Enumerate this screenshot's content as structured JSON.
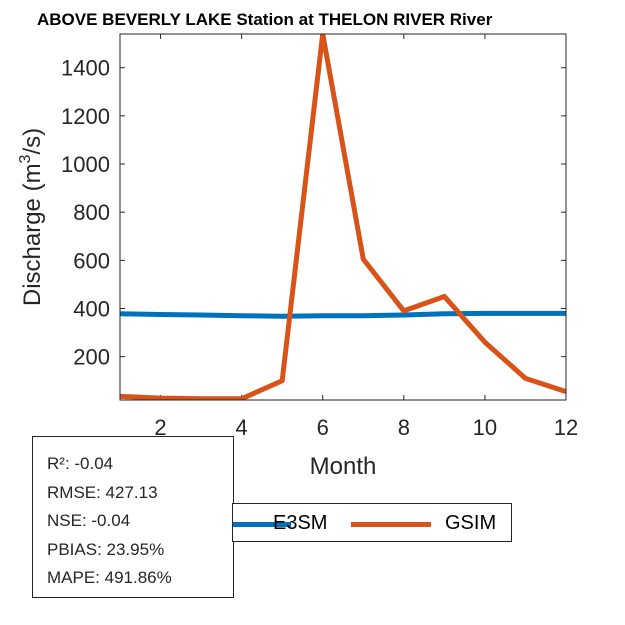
{
  "chart_data": {
    "type": "line",
    "title": "ABOVE BEVERLY LAKE  Station at  THELON RIVER  River",
    "xlabel": "Month",
    "ylabel": "Discharge (m³/s)",
    "ylabel_parts": {
      "main": "Discharge (m",
      "sup": "3",
      "end": "/s)"
    },
    "xlim": [
      1,
      12
    ],
    "ylim": [
      20,
      1540
    ],
    "xticks": [
      2,
      4,
      6,
      8,
      10,
      12
    ],
    "yticks": [
      200,
      400,
      600,
      800,
      1000,
      1200,
      1400
    ],
    "x": [
      1,
      2,
      3,
      4,
      5,
      6,
      7,
      8,
      9,
      10,
      11,
      12
    ],
    "series": [
      {
        "name": "E3SM",
        "color": "#0072BD",
        "values": [
          378,
          375,
          373,
          370,
          368,
          370,
          370,
          373,
          378,
          380,
          380,
          380
        ]
      },
      {
        "name": "GSIM",
        "color": "#D95319",
        "values": [
          35,
          28,
          25,
          25,
          100,
          1540,
          605,
          390,
          450,
          260,
          110,
          55
        ]
      }
    ]
  },
  "stats": {
    "r2": "R²: -0.04",
    "rmse": "RMSE: 427.13",
    "nse": "NSE: -0.04",
    "pbias": "PBIAS: 23.95%",
    "mape": "MAPE: 491.86%"
  },
  "legend": {
    "e3sm_label": "E3SM",
    "gsim_label": "GSIM"
  }
}
